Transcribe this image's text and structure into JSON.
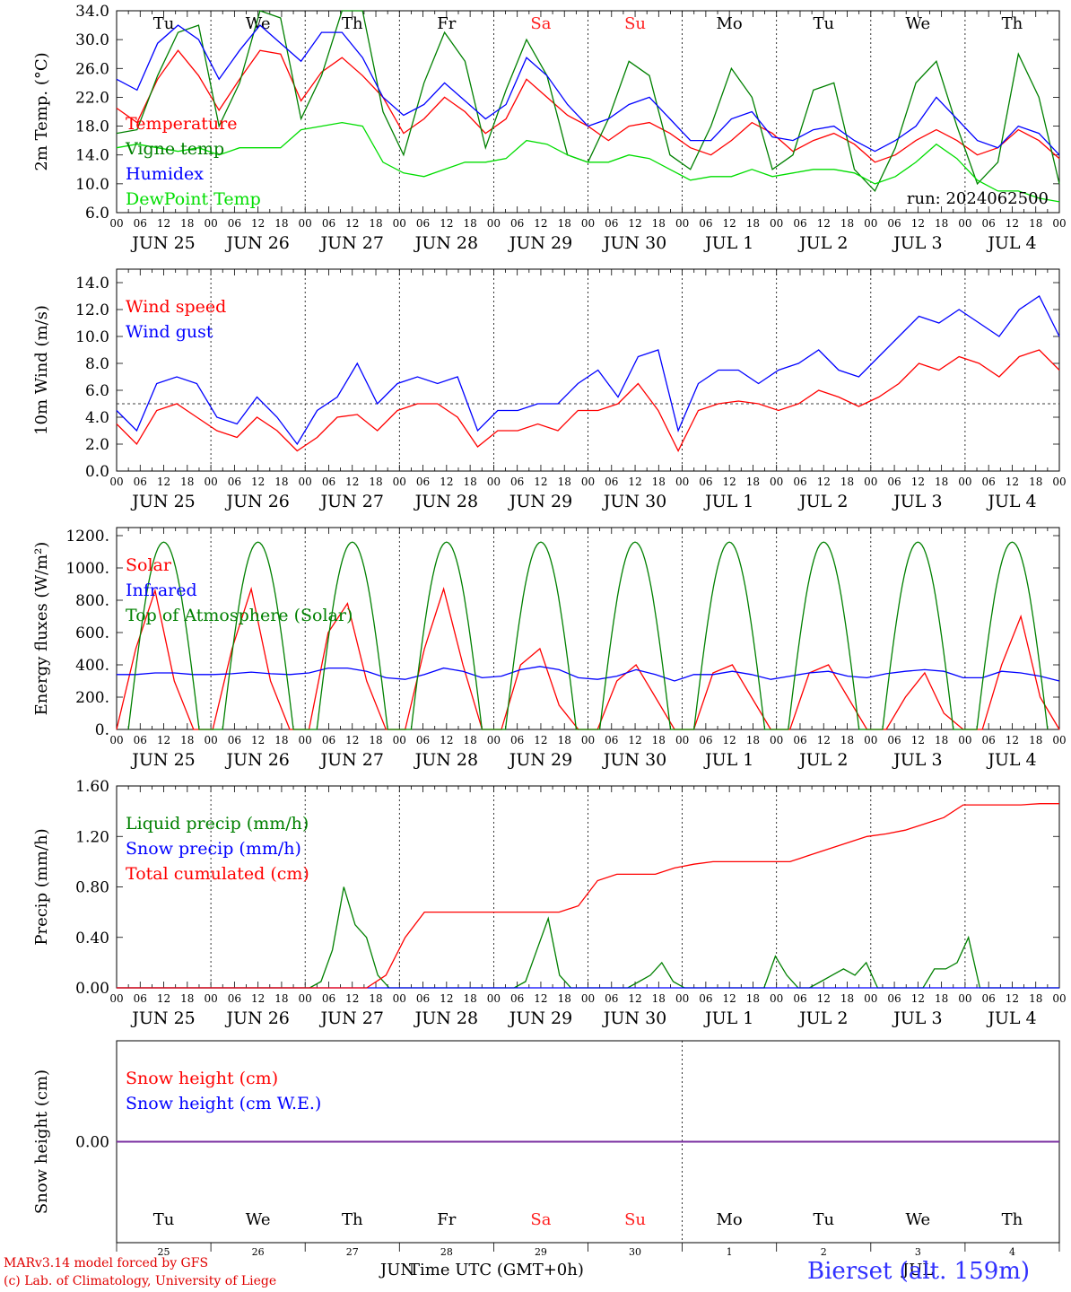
{
  "footer": {
    "model": "MARv3.14 model forced by GFS",
    "lab": "(c) Lab. of Climatology, University of Liege",
    "xlabel": "Time UTC (GMT+0h)",
    "month_left": "JUN",
    "month_right": "JUL",
    "station": "Bierset (alt. 159m)"
  },
  "axis": {
    "hour_ticks": [
      "00",
      "06",
      "12",
      "18"
    ],
    "day_labels": [
      "JUN 25",
      "JUN 26",
      "JUN 27",
      "JUN 28",
      "JUN 29",
      "JUN 30",
      "JUL  1",
      "JUL  2",
      "JUL  3",
      "JUL  4"
    ],
    "weekdays": [
      "Tu",
      "We",
      "Th",
      "Fr",
      "Sa",
      "Su",
      "Mo",
      "Tu",
      "We",
      "Th"
    ],
    "weekend_color": "#ff2020",
    "weekend_index": [
      4,
      5
    ],
    "day_numbers": [
      "25",
      "26",
      "27",
      "28",
      "29",
      "30",
      "1",
      "2",
      "3",
      "4"
    ]
  },
  "chart_data": [
    {
      "type": "line",
      "id": "temp",
      "ylabel": "2m Temp. (°C)",
      "ylim": [
        6,
        34
      ],
      "yticks": [
        "6.0",
        "10.0",
        "14.0",
        "18.0",
        "22.0",
        "26.0",
        "30.0",
        "34.0"
      ],
      "run_label": "run: 2024062500",
      "x_hours_step": 6,
      "series": [
        {
          "name": "Temperature",
          "color": "#ff0000",
          "values": [
            20.5,
            18.5,
            24.5,
            28.5,
            25,
            20.2,
            24.5,
            28.5,
            28,
            21.5,
            25.5,
            27.5,
            25,
            22,
            17,
            19,
            22,
            20,
            17,
            19,
            24.5,
            22,
            19.5,
            18,
            16,
            18,
            18.5,
            17,
            15,
            14,
            16,
            18.5,
            17,
            14.5,
            16,
            17,
            15.5,
            13,
            14,
            16,
            17.5,
            16,
            14,
            15,
            17.5,
            16,
            13.5
          ]
        },
        {
          "name": "Vigne temp",
          "color": "#008000",
          "values": [
            17,
            17.5,
            25,
            31,
            32,
            18,
            24,
            34,
            33,
            19,
            25,
            34,
            34,
            20,
            14,
            24,
            31,
            27,
            15,
            23,
            30,
            25,
            14,
            13,
            19,
            27,
            25,
            14,
            12,
            18,
            26,
            22,
            12,
            14,
            23,
            24,
            12,
            9,
            15,
            24,
            27,
            18,
            10,
            13,
            28,
            22,
            10
          ]
        },
        {
          "name": "Humidex",
          "color": "#0000ff",
          "values": [
            24.5,
            23,
            29.5,
            32,
            30,
            24.5,
            28.5,
            32,
            29.5,
            27,
            31,
            31,
            27.5,
            22,
            19.5,
            21,
            24,
            21.5,
            19,
            21,
            27.5,
            25,
            21,
            18,
            19,
            21,
            22,
            19,
            16,
            16,
            19,
            20,
            16.5,
            16,
            17.5,
            18,
            16,
            14.5,
            16,
            18,
            22,
            19,
            16,
            15,
            18,
            17,
            14
          ]
        },
        {
          "name": "DewPoint Temp",
          "color": "#00dd00",
          "values": [
            15,
            15.5,
            15,
            14.5,
            15,
            14,
            15,
            15,
            15,
            17.5,
            18,
            18.5,
            18,
            13,
            11.5,
            11,
            12,
            13,
            13,
            13.5,
            16,
            15.5,
            14,
            13,
            13,
            14,
            13.5,
            12,
            10.5,
            11,
            11,
            12,
            11,
            11.5,
            12,
            12,
            11.5,
            10,
            11,
            13,
            15.5,
            13.5,
            10.5,
            9,
            9,
            8,
            7.5
          ]
        }
      ]
    },
    {
      "type": "line",
      "id": "wind",
      "ylabel": "10m Wind (m/s)",
      "ylim": [
        0,
        15
      ],
      "yticks": [
        "0.0",
        "2.0",
        "4.0",
        "6.0",
        "8.0",
        "10.0",
        "12.0",
        "14.0"
      ],
      "threshold": 5,
      "x_hours_step": 6,
      "series": [
        {
          "name": "Wind speed",
          "color": "#ff0000",
          "values": [
            3.5,
            2,
            4.5,
            5,
            4,
            3,
            2.5,
            4,
            3,
            1.5,
            2.5,
            4,
            4.2,
            3,
            4.5,
            5,
            5,
            4,
            1.8,
            3,
            3,
            3.5,
            3,
            4.5,
            4.5,
            5,
            6.5,
            4.5,
            1.5,
            4.5,
            5,
            5.2,
            5,
            4.5,
            5,
            6,
            5.5,
            4.8,
            5.5,
            6.5,
            8,
            7.5,
            8.5,
            8,
            7,
            8.5,
            9,
            7.5
          ]
        },
        {
          "name": "Wind gust",
          "color": "#0000ff",
          "values": [
            4.5,
            3,
            6.5,
            7,
            6.5,
            4,
            3.5,
            5.5,
            4,
            2,
            4.5,
            5.5,
            8,
            5,
            6.5,
            7,
            6.5,
            7,
            3,
            4.5,
            4.5,
            5,
            5,
            6.5,
            7.5,
            5.5,
            8.5,
            9,
            3,
            6.5,
            7.5,
            7.5,
            6.5,
            7.5,
            8,
            9,
            7.5,
            7,
            8.5,
            10,
            11.5,
            11,
            12,
            11,
            10,
            12,
            13,
            10
          ]
        }
      ]
    },
    {
      "type": "line",
      "id": "flux",
      "ylabel": "Energy fluxes (W/m²)",
      "ylim": [
        0,
        1250
      ],
      "yticks": [
        "0.",
        "200.",
        "400.",
        "600.",
        "800.",
        "1000.",
        "1200."
      ],
      "x_hours_step": 6,
      "series": [
        {
          "name": "Solar",
          "color": "#ff0000",
          "values": [
            0,
            500,
            860,
            300,
            0,
            0,
            500,
            870,
            300,
            0,
            0,
            600,
            780,
            300,
            0,
            0,
            500,
            870,
            400,
            0,
            0,
            400,
            500,
            150,
            0,
            0,
            300,
            400,
            200,
            0,
            0,
            350,
            400,
            200,
            0,
            0,
            350,
            400,
            200,
            0,
            0,
            200,
            350,
            100,
            0,
            0,
            400,
            700,
            200,
            0
          ]
        },
        {
          "name": "Infrared",
          "color": "#0000ff",
          "values": [
            340,
            340,
            350,
            350,
            340,
            340,
            345,
            355,
            345,
            340,
            350,
            380,
            380,
            360,
            320,
            310,
            340,
            380,
            360,
            320,
            330,
            370,
            390,
            370,
            320,
            310,
            330,
            370,
            340,
            300,
            340,
            340,
            360,
            340,
            310,
            330,
            350,
            360,
            330,
            320,
            345,
            360,
            370,
            360,
            320,
            320,
            360,
            350,
            330,
            300
          ]
        },
        {
          "name": "Top of Atmosphere (Solar)",
          "color": "#008000",
          "values": [
            0,
            700,
            1160,
            700,
            0
          ]
        }
      ]
    },
    {
      "type": "line",
      "id": "precip",
      "ylabel": "Precip (mm/h)",
      "ylim": [
        0,
        1.6
      ],
      "yticks": [
        "0.00",
        "0.40",
        "0.80",
        "1.20",
        "1.60"
      ],
      "x_hours_step": 6,
      "series": [
        {
          "name": "Liquid precip (mm/h)",
          "color": "#008000",
          "values": [
            0,
            0,
            0,
            0,
            0,
            0,
            0,
            0,
            0,
            0,
            0,
            0,
            0,
            0,
            0,
            0,
            0,
            0,
            0.05,
            0.3,
            0.8,
            0.5,
            0.4,
            0.1,
            0,
            0,
            0,
            0,
            0,
            0,
            0,
            0,
            0,
            0,
            0,
            0,
            0.05,
            0.3,
            0.55,
            0.1,
            0,
            0,
            0,
            0,
            0,
            0,
            0.05,
            0.1,
            0.2,
            0.05,
            0,
            0,
            0,
            0,
            0,
            0,
            0,
            0,
            0.25,
            0.1,
            0,
            0,
            0.05,
            0.1,
            0.15,
            0.1,
            0.2,
            0,
            0,
            0,
            0,
            0,
            0.15,
            0.15,
            0.2,
            0.4,
            0,
            0,
            0,
            0,
            0,
            0,
            0,
            0
          ]
        },
        {
          "name": "Snow precip (mm/h)",
          "color": "#0000ff",
          "values": [
            0
          ]
        },
        {
          "name": "Total cumulated (cm)",
          "color": "#ff0000",
          "values": [
            0,
            0,
            0,
            0,
            0,
            0,
            0,
            0,
            0,
            0,
            0,
            0,
            0,
            0,
            0.1,
            0.4,
            0.6,
            0.6,
            0.6,
            0.6,
            0.6,
            0.6,
            0.6,
            0.6,
            0.65,
            0.85,
            0.9,
            0.9,
            0.9,
            0.95,
            0.98,
            1.0,
            1.0,
            1.0,
            1.0,
            1.0,
            1.05,
            1.1,
            1.15,
            1.2,
            1.22,
            1.25,
            1.3,
            1.35,
            1.45,
            1.45,
            1.45,
            1.45,
            1.46,
            1.46
          ]
        }
      ]
    },
    {
      "type": "line",
      "id": "snow",
      "ylabel": "Snow height (cm)",
      "yticks": [
        "0.00"
      ],
      "series": [
        {
          "name": "Snow height (cm)",
          "color": "#ff0000",
          "values": [
            0,
            0
          ]
        },
        {
          "name": "Snow height (cm W.E.)",
          "color": "#0000ff",
          "values": [
            0,
            0
          ]
        }
      ]
    }
  ]
}
